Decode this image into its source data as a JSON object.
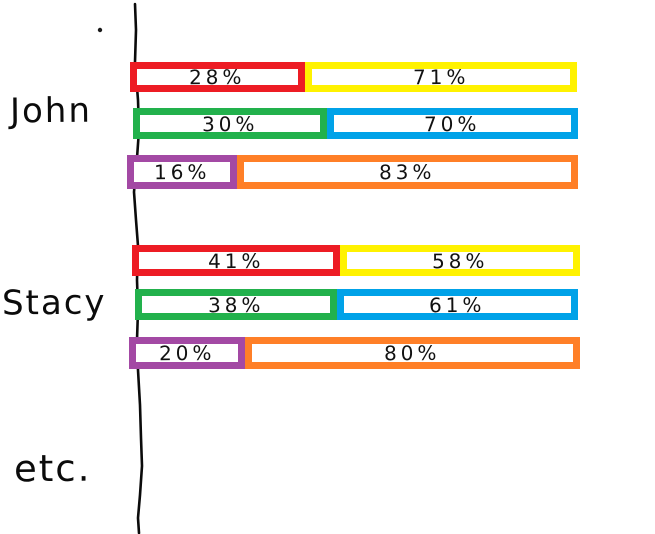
{
  "chart_data": {
    "type": "bar",
    "orientation": "horizontal",
    "stacked": true,
    "value_unit": "percent",
    "title": "",
    "xlabel": "",
    "ylabel": "",
    "categories": [
      "John",
      "Stacy",
      "etc."
    ],
    "groups": [
      {
        "label": "John",
        "bars": [
          {
            "segments": [
              {
                "label": "28%",
                "value": 28,
                "color_name": "red",
                "color": "#ED1C24"
              },
              {
                "label": "71%",
                "value": 71,
                "color_name": "yellow",
                "color": "#FFF200"
              }
            ]
          },
          {
            "segments": [
              {
                "label": "30%",
                "value": 30,
                "color_name": "green",
                "color": "#22B14C"
              },
              {
                "label": "70%",
                "value": 70,
                "color_name": "blue",
                "color": "#00A2E8"
              }
            ]
          },
          {
            "segments": [
              {
                "label": "16%",
                "value": 16,
                "color_name": "purple",
                "color": "#A349A4"
              },
              {
                "label": "83%",
                "value": 83,
                "color_name": "orange",
                "color": "#FF7F27"
              }
            ]
          }
        ]
      },
      {
        "label": "Stacy",
        "bars": [
          {
            "segments": [
              {
                "label": "41%",
                "value": 41,
                "color_name": "red",
                "color": "#ED1C24"
              },
              {
                "label": "58%",
                "value": 58,
                "color_name": "yellow",
                "color": "#FFF200"
              }
            ]
          },
          {
            "segments": [
              {
                "label": "38%",
                "value": 38,
                "color_name": "green",
                "color": "#22B14C"
              },
              {
                "label": "61%",
                "value": 61,
                "color_name": "blue",
                "color": "#00A2E8"
              }
            ]
          },
          {
            "segments": [
              {
                "label": "20%",
                "value": 20,
                "color_name": "purple",
                "color": "#A349A4"
              },
              {
                "label": "80%",
                "value": 80,
                "color_name": "orange",
                "color": "#FF7F27"
              }
            ]
          }
        ]
      },
      {
        "label": "etc.",
        "bars": []
      }
    ],
    "layout_hints": {
      "style": "hand-drawn",
      "legend": "none",
      "gridlines": false,
      "value_labels": "inside-segments",
      "axis": "single vertical category axis line, no ticks, no scale"
    }
  }
}
